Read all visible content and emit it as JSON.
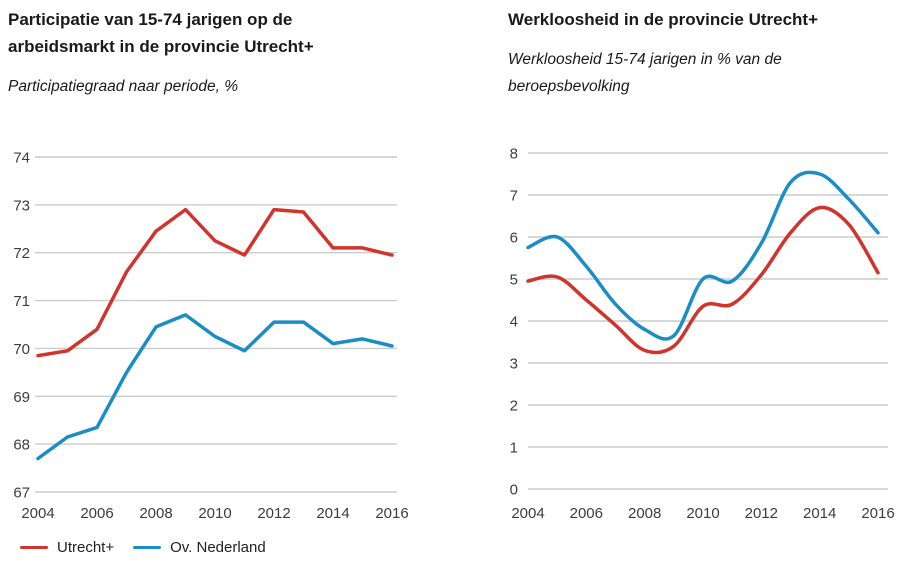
{
  "page": {
    "background": "#ffffff"
  },
  "colors": {
    "utrecht_red": "#d0342c",
    "ov_nederland_blue": "#1b8dc6",
    "gridline": "#cccccc",
    "axis_label": "#3d3d3d",
    "title_text": "#1a1a1a"
  },
  "legend": {
    "items": [
      {
        "label": "Utrecht+",
        "color": "#d0342c"
      },
      {
        "label": "Ov. Nederland",
        "color": "#1b8dc6"
      }
    ]
  },
  "chart_data": [
    {
      "id": "participatie",
      "type": "line",
      "title": "Participatie van 15-74 jarigen op de arbeidsmarkt in de provincie Utrecht+",
      "subtitle": "Participatiegraad naar periode, %",
      "xlabel": "",
      "ylabel": "",
      "x": [
        2004,
        2005,
        2006,
        2007,
        2008,
        2009,
        2010,
        2011,
        2012,
        2013,
        2014,
        2015,
        2016
      ],
      "x_ticks": [
        2004,
        2006,
        2008,
        2010,
        2012,
        2014,
        2016
      ],
      "ylim": [
        67,
        74
      ],
      "y_ticks": [
        67,
        68,
        69,
        70,
        71,
        72,
        73,
        74
      ],
      "grid": true,
      "smooth": false,
      "legend_position": "bottom-left",
      "series": [
        {
          "name": "Utrecht+",
          "color": "#d0342c",
          "values": [
            69.85,
            69.95,
            70.4,
            71.6,
            72.45,
            72.9,
            72.25,
            71.95,
            72.9,
            72.85,
            72.1,
            72.1,
            71.95
          ]
        },
        {
          "name": "Ov. Nederland",
          "color": "#1b8dc6",
          "values": [
            67.7,
            68.15,
            68.35,
            69.5,
            70.45,
            70.7,
            70.25,
            69.95,
            70.55,
            70.55,
            70.1,
            70.2,
            70.05
          ]
        }
      ]
    },
    {
      "id": "werkloosheid",
      "type": "line",
      "title": "Werkloosheid in de provincie Utrecht+",
      "subtitle": "Werkloosheid 15-74 jarigen in % van de beroepsbevolking",
      "xlabel": "",
      "ylabel": "",
      "x": [
        2004,
        2005,
        2006,
        2007,
        2008,
        2009,
        2010,
        2011,
        2012,
        2013,
        2014,
        2015,
        2016
      ],
      "x_ticks": [
        2004,
        2006,
        2008,
        2010,
        2012,
        2014,
        2016
      ],
      "ylim": [
        0,
        8
      ],
      "y_ticks": [
        0,
        1,
        2,
        3,
        4,
        5,
        6,
        7,
        8
      ],
      "grid": true,
      "smooth": true,
      "legend_position": "none",
      "series": [
        {
          "name": "Utrecht+",
          "color": "#d0342c",
          "values": [
            4.95,
            5.05,
            4.5,
            3.9,
            3.3,
            3.4,
            4.35,
            4.4,
            5.1,
            6.1,
            6.7,
            6.3,
            5.15
          ]
        },
        {
          "name": "Ov. Nederland",
          "color": "#1b8dc6",
          "values": [
            5.75,
            6.0,
            5.3,
            4.4,
            3.8,
            3.65,
            5.0,
            4.95,
            5.85,
            7.3,
            7.5,
            6.9,
            6.1
          ]
        }
      ]
    }
  ]
}
